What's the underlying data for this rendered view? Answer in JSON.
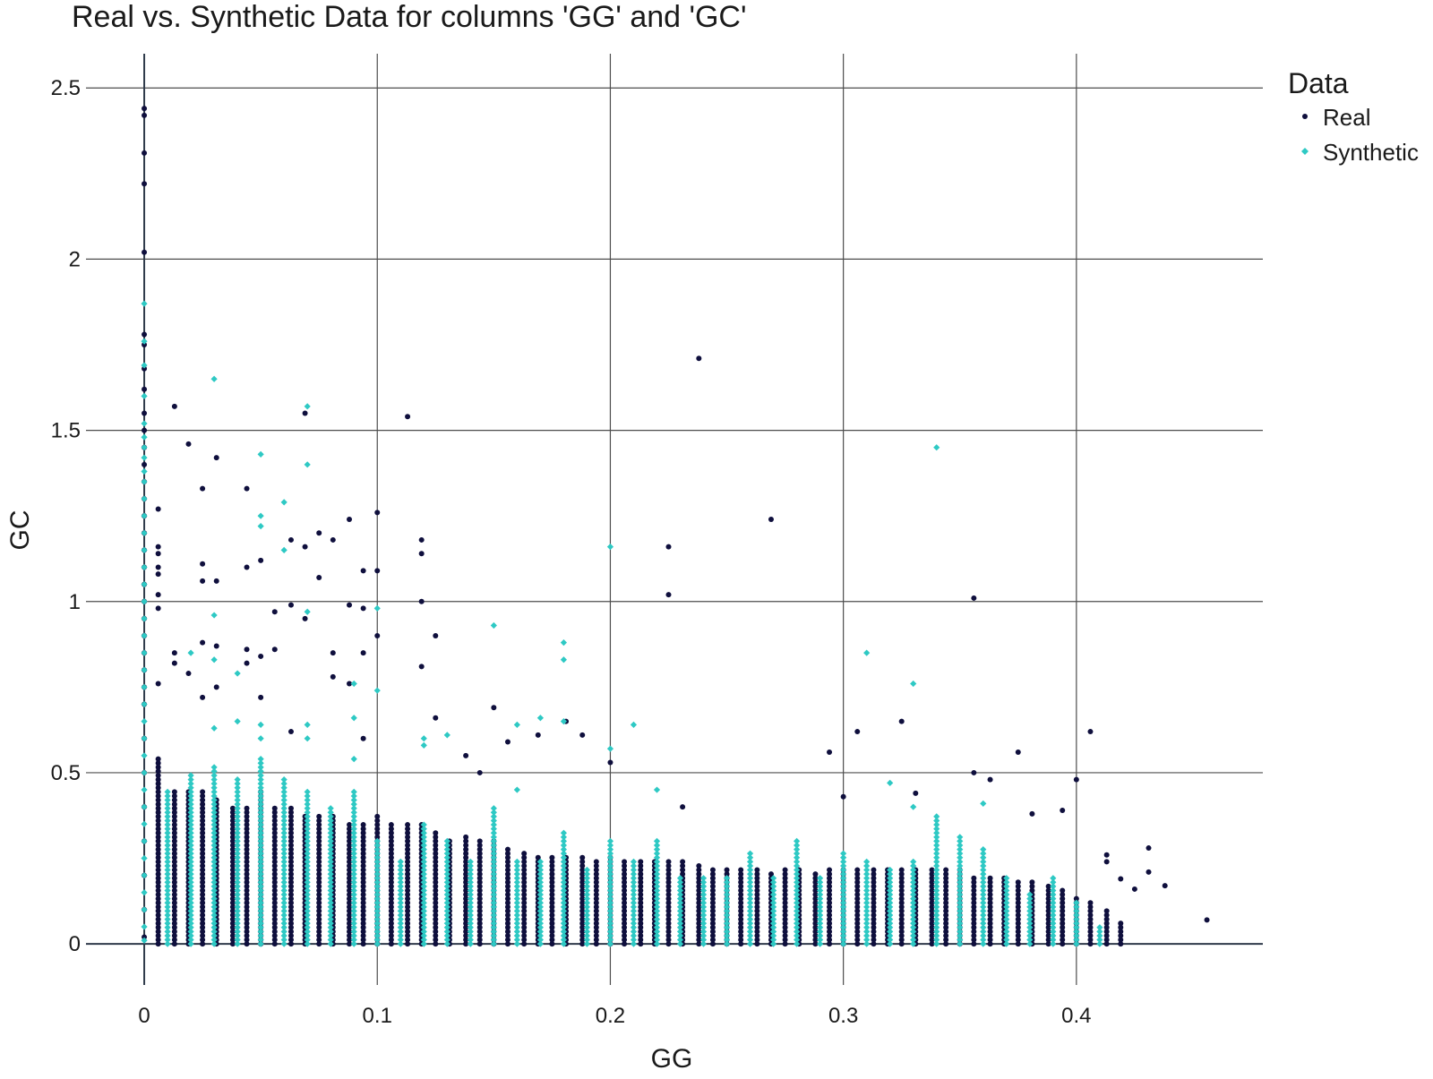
{
  "chart_data": {
    "type": "scatter",
    "title": "Real vs. Synthetic Data for columns 'GG' and 'GC'",
    "xlabel": "GG",
    "ylabel": "GC",
    "xlim": [
      -0.025,
      0.48
    ],
    "ylim": [
      -0.12,
      2.6
    ],
    "x_ticks": [
      0,
      0.1,
      0.2,
      0.3,
      0.4
    ],
    "x_tick_labels": [
      "0",
      "0.1",
      "0.2",
      "0.3",
      "0.4"
    ],
    "y_ticks": [
      0,
      0.5,
      1,
      1.5,
      2,
      2.5
    ],
    "y_tick_labels": [
      "0",
      "0.5",
      "1",
      "1.5",
      "2",
      "2.5"
    ],
    "grid": true,
    "legend": {
      "title": "Data",
      "position": "top-right"
    },
    "series": [
      {
        "name": "Real",
        "color": "#0f0f3d",
        "marker": "circle",
        "points": [
          [
            0,
            2.44
          ],
          [
            0,
            2.42
          ],
          [
            0,
            2.31
          ],
          [
            0,
            2.22
          ],
          [
            0,
            2.02
          ],
          [
            0,
            1.78
          ],
          [
            0,
            1.75
          ],
          [
            0,
            1.68
          ],
          [
            0,
            1.62
          ],
          [
            0,
            1.55
          ],
          [
            0,
            1.5
          ],
          [
            0,
            1.45
          ],
          [
            0,
            1.4
          ],
          [
            0,
            1.35
          ],
          [
            0,
            1.3
          ],
          [
            0,
            1.25
          ],
          [
            0,
            1.2
          ],
          [
            0,
            1.15
          ],
          [
            0,
            1.1
          ],
          [
            0,
            1.05
          ],
          [
            0,
            1.0
          ],
          [
            0,
            0.95
          ],
          [
            0,
            0.9
          ],
          [
            0,
            0.85
          ],
          [
            0,
            0.8
          ],
          [
            0,
            0.75
          ],
          [
            0,
            0.7
          ],
          [
            0,
            0.6
          ],
          [
            0,
            0.5
          ],
          [
            0,
            0.4
          ],
          [
            0,
            0.3
          ],
          [
            0,
            0.2
          ],
          [
            0,
            0.1
          ],
          [
            0,
            0.02
          ],
          [
            0.006,
            1.27
          ],
          [
            0.006,
            1.16
          ],
          [
            0.006,
            1.14
          ],
          [
            0.006,
            1.1
          ],
          [
            0.006,
            1.08
          ],
          [
            0.006,
            1.02
          ],
          [
            0.006,
            0.98
          ],
          [
            0.006,
            0.76
          ],
          [
            0.013,
            1.57
          ],
          [
            0.013,
            0.85
          ],
          [
            0.013,
            0.82
          ],
          [
            0.019,
            1.46
          ],
          [
            0.019,
            0.79
          ],
          [
            0.025,
            1.33
          ],
          [
            0.025,
            1.11
          ],
          [
            0.025,
            1.06
          ],
          [
            0.025,
            0.88
          ],
          [
            0.025,
            0.72
          ],
          [
            0.031,
            1.42
          ],
          [
            0.031,
            1.06
          ],
          [
            0.031,
            0.87
          ],
          [
            0.031,
            0.75
          ],
          [
            0.044,
            1.33
          ],
          [
            0.044,
            1.1
          ],
          [
            0.044,
            0.86
          ],
          [
            0.044,
            0.82
          ],
          [
            0.05,
            1.12
          ],
          [
            0.05,
            0.84
          ],
          [
            0.05,
            0.72
          ],
          [
            0.056,
            0.97
          ],
          [
            0.056,
            0.86
          ],
          [
            0.063,
            1.18
          ],
          [
            0.063,
            0.99
          ],
          [
            0.063,
            0.62
          ],
          [
            0.069,
            1.55
          ],
          [
            0.069,
            1.16
          ],
          [
            0.069,
            0.95
          ],
          [
            0.075,
            1.2
          ],
          [
            0.075,
            1.07
          ],
          [
            0.081,
            1.18
          ],
          [
            0.081,
            0.85
          ],
          [
            0.081,
            0.78
          ],
          [
            0.088,
            1.24
          ],
          [
            0.088,
            0.99
          ],
          [
            0.088,
            0.76
          ],
          [
            0.094,
            1.09
          ],
          [
            0.094,
            0.98
          ],
          [
            0.094,
            0.85
          ],
          [
            0.094,
            0.6
          ],
          [
            0.1,
            1.26
          ],
          [
            0.1,
            1.09
          ],
          [
            0.1,
            0.9
          ],
          [
            0.113,
            1.54
          ],
          [
            0.119,
            1.18
          ],
          [
            0.119,
            1.14
          ],
          [
            0.119,
            1.0
          ],
          [
            0.119,
            0.81
          ],
          [
            0.125,
            0.9
          ],
          [
            0.125,
            0.66
          ],
          [
            0.138,
            0.55
          ],
          [
            0.144,
            0.5
          ],
          [
            0.15,
            0.69
          ],
          [
            0.156,
            0.59
          ],
          [
            0.169,
            0.61
          ],
          [
            0.181,
            0.65
          ],
          [
            0.188,
            0.61
          ],
          [
            0.2,
            0.53
          ],
          [
            0.225,
            1.16
          ],
          [
            0.225,
            1.02
          ],
          [
            0.231,
            0.4
          ],
          [
            0.238,
            1.71
          ],
          [
            0.269,
            1.24
          ],
          [
            0.294,
            0.56
          ],
          [
            0.3,
            0.43
          ],
          [
            0.306,
            0.62
          ],
          [
            0.325,
            0.65
          ],
          [
            0.331,
            0.44
          ],
          [
            0.356,
            1.01
          ],
          [
            0.356,
            0.5
          ],
          [
            0.363,
            0.48
          ],
          [
            0.375,
            0.56
          ],
          [
            0.381,
            0.38
          ],
          [
            0.394,
            0.39
          ],
          [
            0.4,
            0.48
          ],
          [
            0.406,
            0.62
          ],
          [
            0.413,
            0.26
          ],
          [
            0.413,
            0.24
          ],
          [
            0.419,
            0.19
          ],
          [
            0.425,
            0.16
          ],
          [
            0.431,
            0.28
          ],
          [
            0.431,
            0.21
          ],
          [
            0.438,
            0.17
          ],
          [
            0.456,
            0.07
          ]
        ],
        "dense_band": {
          "x_values": [
            0.006,
            0.013,
            0.019,
            0.025,
            0.031,
            0.038,
            0.044,
            0.05,
            0.056,
            0.063,
            0.069,
            0.075,
            0.081,
            0.088,
            0.094,
            0.1,
            0.106,
            0.113,
            0.119,
            0.125,
            0.131,
            0.138,
            0.144,
            0.15,
            0.156,
            0.163,
            0.169,
            0.175,
            0.181,
            0.188,
            0.194,
            0.2,
            0.206,
            0.213,
            0.219,
            0.225,
            0.231,
            0.238,
            0.244,
            0.25,
            0.256,
            0.263,
            0.269,
            0.275,
            0.281,
            0.288,
            0.294,
            0.3,
            0.306,
            0.313,
            0.319,
            0.325,
            0.331,
            0.338,
            0.344,
            0.35,
            0.356,
            0.363,
            0.369,
            0.375,
            0.381,
            0.388,
            0.394,
            0.4,
            0.406,
            0.413,
            0.419
          ],
          "y_max": [
            0.55,
            0.45,
            0.45,
            0.45,
            0.42,
            0.4,
            0.4,
            0.45,
            0.4,
            0.4,
            0.38,
            0.38,
            0.38,
            0.35,
            0.35,
            0.38,
            0.35,
            0.35,
            0.35,
            0.33,
            0.3,
            0.32,
            0.3,
            0.3,
            0.28,
            0.27,
            0.26,
            0.26,
            0.26,
            0.26,
            0.25,
            0.26,
            0.25,
            0.24,
            0.24,
            0.25,
            0.24,
            0.23,
            0.22,
            0.22,
            0.22,
            0.22,
            0.21,
            0.22,
            0.22,
            0.21,
            0.22,
            0.22,
            0.22,
            0.22,
            0.22,
            0.22,
            0.22,
            0.22,
            0.22,
            0.22,
            0.2,
            0.2,
            0.2,
            0.18,
            0.18,
            0.17,
            0.16,
            0.14,
            0.12,
            0.1,
            0.06
          ],
          "y_min": 0
        }
      },
      {
        "name": "Synthetic",
        "color": "#2ec9c4",
        "marker": "diamond",
        "points": [
          [
            0,
            1.87
          ],
          [
            0,
            1.76
          ],
          [
            0,
            1.69
          ],
          [
            0,
            1.6
          ],
          [
            0,
            1.52
          ],
          [
            0,
            1.48
          ],
          [
            0,
            1.45
          ],
          [
            0,
            1.42
          ],
          [
            0,
            1.38
          ],
          [
            0,
            1.35
          ],
          [
            0,
            1.3
          ],
          [
            0,
            1.25
          ],
          [
            0,
            1.2
          ],
          [
            0,
            1.15
          ],
          [
            0,
            1.1
          ],
          [
            0,
            1.05
          ],
          [
            0,
            1.0
          ],
          [
            0,
            0.95
          ],
          [
            0,
            0.9
          ],
          [
            0,
            0.85
          ],
          [
            0,
            0.8
          ],
          [
            0,
            0.75
          ],
          [
            0,
            0.7
          ],
          [
            0,
            0.65
          ],
          [
            0,
            0.6
          ],
          [
            0,
            0.55
          ],
          [
            0,
            0.5
          ],
          [
            0,
            0.45
          ],
          [
            0,
            0.4
          ],
          [
            0,
            0.35
          ],
          [
            0,
            0.3
          ],
          [
            0,
            0.25
          ],
          [
            0,
            0.2
          ],
          [
            0,
            0.15
          ],
          [
            0,
            0.1
          ],
          [
            0,
            0.05
          ],
          [
            0,
            0.01
          ],
          [
            0.02,
            0.85
          ],
          [
            0.03,
            1.65
          ],
          [
            0.03,
            0.96
          ],
          [
            0.03,
            0.83
          ],
          [
            0.03,
            0.63
          ],
          [
            0.04,
            0.79
          ],
          [
            0.04,
            0.65
          ],
          [
            0.05,
            1.43
          ],
          [
            0.05,
            1.25
          ],
          [
            0.05,
            1.22
          ],
          [
            0.05,
            0.64
          ],
          [
            0.05,
            0.6
          ],
          [
            0.06,
            1.29
          ],
          [
            0.06,
            1.15
          ],
          [
            0.07,
            1.57
          ],
          [
            0.07,
            1.4
          ],
          [
            0.07,
            0.97
          ],
          [
            0.07,
            0.64
          ],
          [
            0.07,
            0.6
          ],
          [
            0.09,
            0.76
          ],
          [
            0.09,
            0.66
          ],
          [
            0.09,
            0.54
          ],
          [
            0.1,
            0.98
          ],
          [
            0.1,
            0.74
          ],
          [
            0.12,
            0.6
          ],
          [
            0.12,
            0.58
          ],
          [
            0.13,
            0.61
          ],
          [
            0.15,
            0.93
          ],
          [
            0.16,
            0.64
          ],
          [
            0.16,
            0.45
          ],
          [
            0.17,
            0.66
          ],
          [
            0.18,
            0.88
          ],
          [
            0.18,
            0.83
          ],
          [
            0.18,
            0.65
          ],
          [
            0.2,
            1.16
          ],
          [
            0.2,
            0.57
          ],
          [
            0.21,
            0.64
          ],
          [
            0.22,
            0.45
          ],
          [
            0.31,
            0.85
          ],
          [
            0.32,
            0.47
          ],
          [
            0.33,
            0.76
          ],
          [
            0.33,
            0.4
          ],
          [
            0.34,
            1.45
          ],
          [
            0.36,
            0.41
          ]
        ],
        "dense_band": {
          "x_values": [
            0.01,
            0.02,
            0.03,
            0.04,
            0.05,
            0.06,
            0.07,
            0.08,
            0.09,
            0.1,
            0.11,
            0.12,
            0.13,
            0.14,
            0.15,
            0.16,
            0.17,
            0.18,
            0.19,
            0.2,
            0.21,
            0.22,
            0.23,
            0.24,
            0.25,
            0.26,
            0.27,
            0.28,
            0.29,
            0.3,
            0.31,
            0.32,
            0.33,
            0.34,
            0.35,
            0.36,
            0.37,
            0.38,
            0.39,
            0.4,
            0.41
          ],
          "y_max": [
            0.45,
            0.5,
            0.52,
            0.48,
            0.55,
            0.48,
            0.45,
            0.4,
            0.45,
            0.3,
            0.25,
            0.35,
            0.3,
            0.25,
            0.4,
            0.25,
            0.25,
            0.33,
            0.22,
            0.3,
            0.25,
            0.3,
            0.2,
            0.2,
            0.2,
            0.27,
            0.2,
            0.31,
            0.2,
            0.27,
            0.25,
            0.22,
            0.25,
            0.38,
            0.32,
            0.28,
            0.2,
            0.15,
            0.2,
            0.12,
            0.05
          ],
          "y_min": 0
        }
      }
    ]
  }
}
